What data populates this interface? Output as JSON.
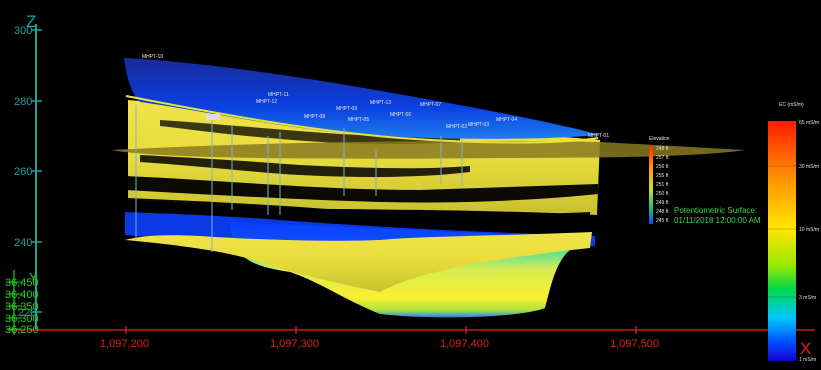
{
  "viewer": {
    "z_axis_letter": "Z",
    "x_axis_letter": "X",
    "y_axis_letter": "Y",
    "accent_colors": {
      "z_axis": "#1fa39a",
      "x_axis": "#e02020",
      "y_axis": "#22cc22"
    }
  },
  "z_ticks": [
    "300",
    "280",
    "260",
    "240",
    "220"
  ],
  "x_ticks": [
    "1,097,200",
    "1,097,300",
    "1,097,400",
    "1,097,500"
  ],
  "y_ticks": [
    "36,450",
    "36,400",
    "36,350",
    "36,300",
    "36,250"
  ],
  "wells": [
    "MHPT-10",
    "MHPT-11",
    "MHPT-12",
    "MHPT-09",
    "MHPT-13",
    "MHPT-07",
    "MHPT-08",
    "MHPT-05",
    "MHPT-06",
    "MHPT-02",
    "MHPT-03",
    "MHPT-04",
    "MHPT-01"
  ],
  "elevation_legend": {
    "title": "Elevation",
    "items": [
      "248 ft",
      "257 ft",
      "256 ft",
      "255 ft",
      "251 ft",
      "250 ft",
      "249 ft",
      "248 ft",
      "245 ft"
    ]
  },
  "surface_label": {
    "line1": "Potentiometric Surface:",
    "line2": "01/11/2018 12:00:00 AM"
  },
  "ec_legend": {
    "title": "EC (mS/m)",
    "labels": [
      "65 mS/m",
      "30 mS/m",
      "10 mS/m",
      "3 mS/m",
      "1 mS/m"
    ],
    "colors": [
      "#ff1a00",
      "#ff8a00",
      "#ffe600",
      "#9be800",
      "#00d84a",
      "#00c8ff",
      "#0050ff",
      "#1400d0"
    ]
  }
}
